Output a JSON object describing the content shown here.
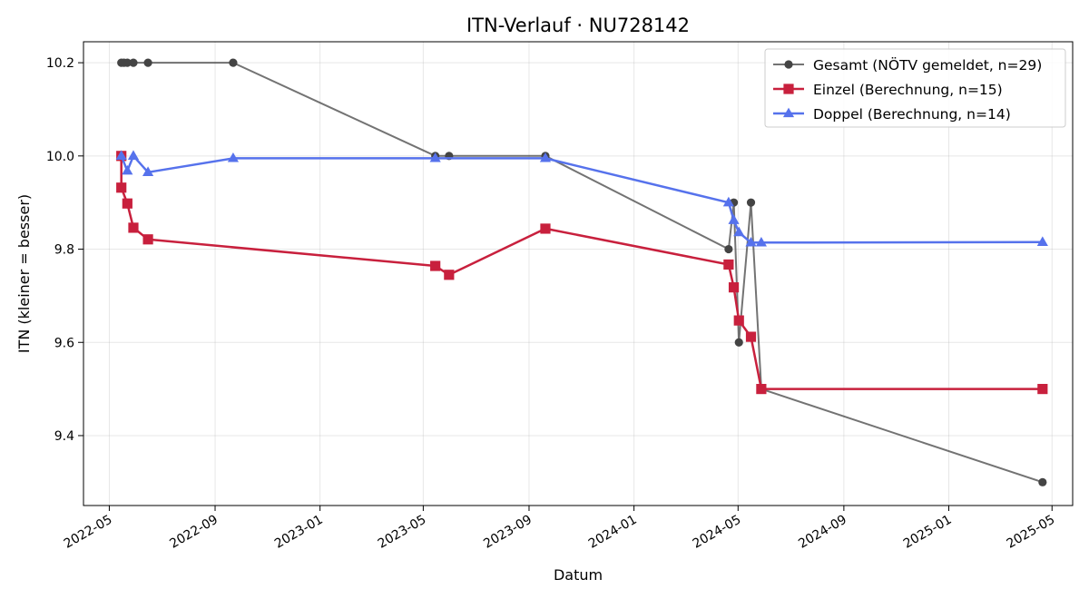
{
  "chart_data": {
    "type": "line",
    "title": "ITN-Verlauf · NU728142",
    "xlabel": "Datum",
    "ylabel": "ITN  (kleiner = besser)",
    "xlim": [
      "2022-04-01",
      "2025-05-25"
    ],
    "ylim": [
      9.25,
      10.245
    ],
    "x_ticks": [
      "2022-05",
      "2022-09",
      "2023-01",
      "2023-05",
      "2023-09",
      "2024-01",
      "2024-05",
      "2024-09",
      "2025-01",
      "2025-05"
    ],
    "y_ticks": [
      9.4,
      9.6,
      9.8,
      10.0,
      10.2
    ],
    "y_tick_labels": [
      "9.4",
      "9.6",
      "9.8",
      "10.0",
      "10.2"
    ],
    "grid": true,
    "legend_position": "top-right",
    "series": [
      {
        "name": "Gesamt (NÖTV gemeldet, n=29)",
        "color": "#444444",
        "marker": "circle",
        "line_alpha": 0.75,
        "points": [
          {
            "x": "2022-05-15",
            "y": 10.2
          },
          {
            "x": "2022-05-18",
            "y": 10.2
          },
          {
            "x": "2022-05-22",
            "y": 10.2
          },
          {
            "x": "2022-05-29",
            "y": 10.2
          },
          {
            "x": "2022-06-15",
            "y": 10.2
          },
          {
            "x": "2022-09-22",
            "y": 10.2
          },
          {
            "x": "2023-05-15",
            "y": 10.0
          },
          {
            "x": "2023-05-31",
            "y": 10.0
          },
          {
            "x": "2023-09-20",
            "y": 10.0
          },
          {
            "x": "2024-04-20",
            "y": 9.8
          },
          {
            "x": "2024-04-26",
            "y": 9.9
          },
          {
            "x": "2024-05-02",
            "y": 9.6
          },
          {
            "x": "2024-05-16",
            "y": 9.9
          },
          {
            "x": "2024-05-28",
            "y": 9.5
          },
          {
            "x": "2025-04-20",
            "y": 9.3
          }
        ]
      },
      {
        "name": "Einzel (Berechnung, n=15)",
        "color": "#c8203d",
        "marker": "square",
        "line_alpha": 1,
        "points": [
          {
            "x": "2022-05-15",
            "y": 10.0
          },
          {
            "x": "2022-05-15",
            "y": 9.932
          },
          {
            "x": "2022-05-22",
            "y": 9.898
          },
          {
            "x": "2022-05-29",
            "y": 9.846
          },
          {
            "x": "2022-06-15",
            "y": 9.821
          },
          {
            "x": "2023-05-15",
            "y": 9.764
          },
          {
            "x": "2023-05-31",
            "y": 9.745
          },
          {
            "x": "2023-09-20",
            "y": 9.844
          },
          {
            "x": "2024-04-20",
            "y": 9.767
          },
          {
            "x": "2024-04-26",
            "y": 9.718
          },
          {
            "x": "2024-05-02",
            "y": 9.647
          },
          {
            "x": "2024-05-16",
            "y": 9.612
          },
          {
            "x": "2024-05-28",
            "y": 9.5
          },
          {
            "x": "2025-04-20",
            "y": 9.5
          }
        ]
      },
      {
        "name": "Doppel (Berechnung, n=14)",
        "color": "#5672ec",
        "marker": "triangle",
        "line_alpha": 1,
        "points": [
          {
            "x": "2022-05-15",
            "y": 10.0
          },
          {
            "x": "2022-05-22",
            "y": 9.968
          },
          {
            "x": "2022-05-29",
            "y": 10.0
          },
          {
            "x": "2022-06-15",
            "y": 9.965
          },
          {
            "x": "2022-09-22",
            "y": 9.995
          },
          {
            "x": "2023-05-15",
            "y": 9.995
          },
          {
            "x": "2023-09-20",
            "y": 9.995
          },
          {
            "x": "2024-04-20",
            "y": 9.9
          },
          {
            "x": "2024-04-26",
            "y": 9.862
          },
          {
            "x": "2024-05-02",
            "y": 9.836
          },
          {
            "x": "2024-05-16",
            "y": 9.814
          },
          {
            "x": "2024-05-28",
            "y": 9.814
          },
          {
            "x": "2025-04-20",
            "y": 9.815
          }
        ]
      }
    ]
  }
}
